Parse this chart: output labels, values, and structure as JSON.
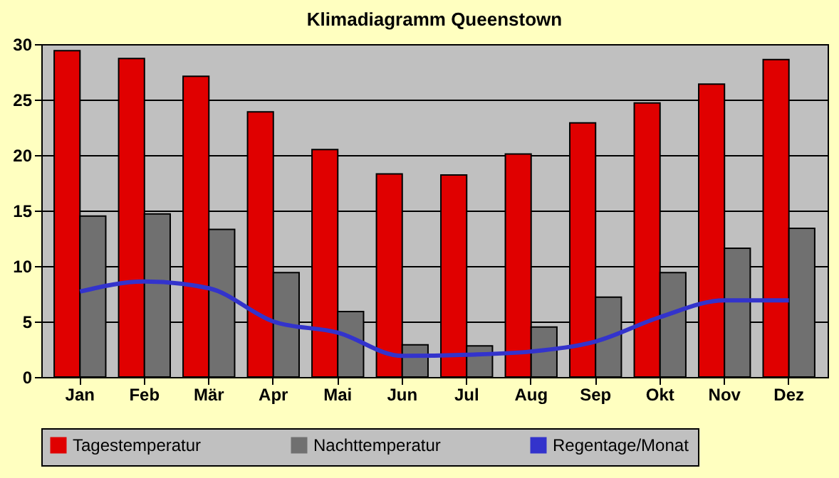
{
  "chart_data": {
    "type": "bar",
    "title": "Klimadiagramm Queenstown",
    "categories": [
      "Jan",
      "Feb",
      "Mär",
      "Apr",
      "Mai",
      "Jun",
      "Jul",
      "Aug",
      "Sep",
      "Okt",
      "Nov",
      "Dez"
    ],
    "series": [
      {
        "name": "Tagestemperatur",
        "color": "#e00000",
        "values": [
          29.4,
          28.7,
          27.1,
          23.9,
          20.5,
          18.3,
          18.2,
          20.1,
          22.9,
          24.7,
          26.4,
          28.6
        ]
      },
      {
        "name": "Nachttemperatur",
        "color": "#707070",
        "values": [
          14.5,
          14.7,
          13.3,
          9.4,
          5.9,
          2.9,
          2.8,
          4.5,
          7.2,
          9.4,
          11.6,
          13.4
        ]
      },
      {
        "name": "Regentage/Monat",
        "type": "line",
        "color": "#3333cc",
        "values": [
          7.7,
          8.6,
          8.0,
          5.0,
          4.0,
          1.9,
          2.0,
          2.3,
          3.2,
          5.4,
          6.9,
          6.9
        ]
      }
    ],
    "ylim": [
      0,
      30
    ],
    "yticks": [
      0,
      5,
      10,
      15,
      20,
      25,
      30
    ],
    "grid": "y",
    "legend": "bottom",
    "marker": "none",
    "line_style": "solid"
  }
}
